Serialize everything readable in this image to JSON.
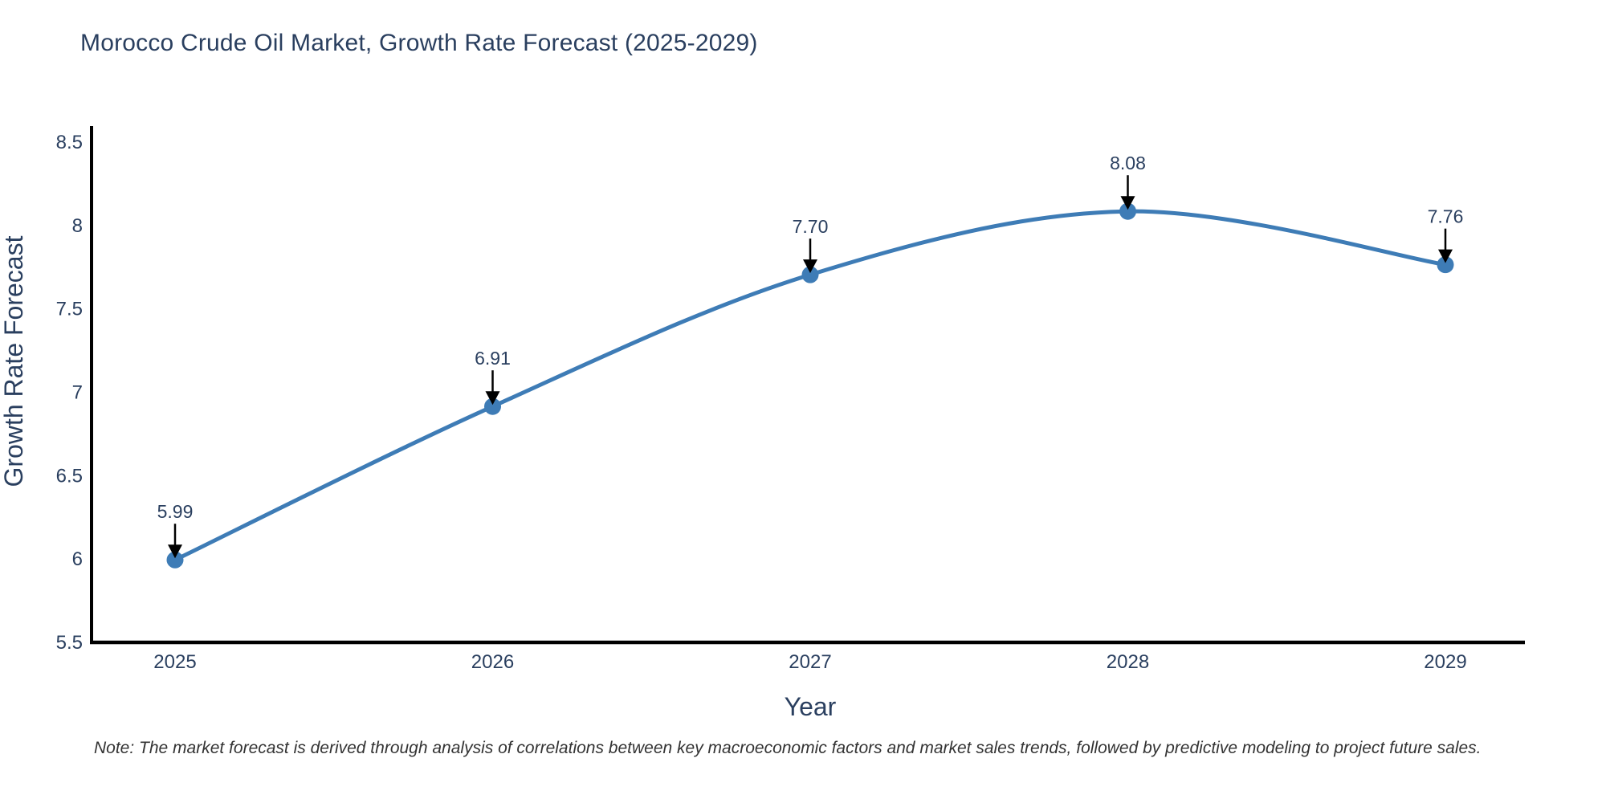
{
  "title": "Morocco Crude Oil Market, Growth Rate Forecast (2025-2029)",
  "note": "Note: The market forecast is derived through analysis of correlations between key macroeconomic factors and market sales trends, followed by predictive modeling to project future sales.",
  "colors": {
    "line": "#3e7cb6",
    "marker": "#3e7cb6",
    "text": "#2a3f5f",
    "axis_line": "#000000",
    "arrow": "#000000",
    "note_text": "#333333",
    "background": "#ffffff"
  },
  "chart_data": {
    "type": "line",
    "title": "Morocco Crude Oil Market, Growth Rate Forecast (2025-2029)",
    "xlabel": "Year",
    "ylabel": "Growth Rate Forecast",
    "x": [
      2025,
      2026,
      2027,
      2028,
      2029
    ],
    "y": [
      5.99,
      6.91,
      7.7,
      8.08,
      7.76
    ],
    "point_labels": [
      "5.99",
      "6.91",
      "7.70",
      "8.08",
      "7.76"
    ],
    "x_tick_labels": [
      "2025",
      "2026",
      "2027",
      "2028",
      "2029"
    ],
    "y_tick_values": [
      5.5,
      6,
      6.5,
      7,
      7.5,
      8,
      8.5
    ],
    "y_tick_labels": [
      "5.5",
      "6",
      "6.5",
      "7",
      "7.5",
      "8",
      "8.5"
    ],
    "ylim": [
      5.5,
      8.5
    ],
    "line_shape": "spline",
    "markers": true,
    "grid": false,
    "legend": "none",
    "annotations_arrows": true
  }
}
